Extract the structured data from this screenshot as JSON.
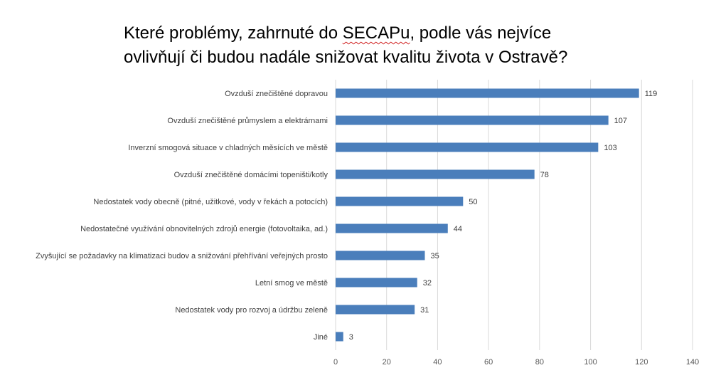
{
  "title_line1_pre": "Které problémy, zahrnuté do ",
  "title_line1_emph": "SECAPu",
  "title_line1_post": ", podle vás nejvíce",
  "title_line2": "ovlivňují či budou nadále snižovat kvalitu života v Ostravě?",
  "chart_data": {
    "type": "bar",
    "orientation": "horizontal",
    "categories": [
      "Ovzduší znečištěné dopravou",
      "Ovzduší znečištěné průmyslem a elektrárnami",
      "Inverzní smogová situace v chladných měsících ve městě",
      "Ovzduší znečištěné domácími topeništi/kotly",
      "Nedostatek vody obecně (pitné, užitkové, vody v řekách a potocích)",
      "Nedostatečné využívání obnovitelných zdrojů energie (fotovoltaika, ad.)",
      "Zvyšující se požadavky na klimatizaci budov a snižování přehřívání veřejných prosto",
      "Letní smog ve městě",
      "Nedostatek vody pro rozvoj a údržbu zeleně",
      "Jiné"
    ],
    "values": [
      119,
      107,
      103,
      78,
      50,
      44,
      35,
      32,
      31,
      3
    ],
    "xlim": [
      0,
      140
    ],
    "xticks": [
      "0",
      "20",
      "40",
      "60",
      "80",
      "100",
      "120",
      "140"
    ],
    "grid": "vertical",
    "data_labels": true,
    "bar_color": "#4a7ebb",
    "gridline_color": "#d9d9d9",
    "text_color": "#404040"
  }
}
